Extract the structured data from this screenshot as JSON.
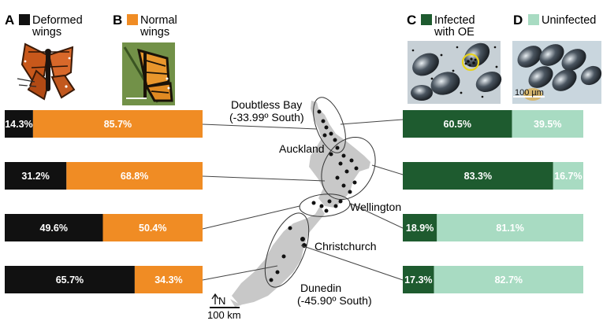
{
  "panels": {
    "A": {
      "letter": "A",
      "label_line1": "Deformed",
      "label_line2": "wings",
      "color": "#111111"
    },
    "B": {
      "letter": "B",
      "label_line1": "Normal",
      "label_line2": "wings",
      "color": "#f08c24"
    },
    "C": {
      "letter": "C",
      "label_line1": "Infected",
      "label_line2": "with OE",
      "color": "#1e5b2f"
    },
    "D": {
      "letter": "D",
      "label_line1": "Uninfected",
      "label_line2": "",
      "color": "#a8dbc2"
    }
  },
  "map": {
    "sites": [
      {
        "name_line1": "Doubtless Bay",
        "name_line2": "(-33.99º South)"
      },
      {
        "name_line1": "Auckland",
        "name_line2": ""
      },
      {
        "name_line1": "Wellington",
        "name_line2": ""
      },
      {
        "name_line1": "Christchurch",
        "name_line2": ""
      },
      {
        "name_line1": "Dunedin",
        "name_line2": "(-45.90º South)"
      }
    ],
    "north_label": "N",
    "scale_label": "100 km",
    "land_color": "#c8c8c8"
  },
  "micro_scale_label": "100 µm",
  "chart_data": [
    {
      "type": "bar",
      "orientation": "horizontal",
      "stacked": true,
      "categories": [
        "Doubtless Bay",
        "Auckland",
        "Wellington",
        "Christchurch/Dunedin"
      ],
      "series": [
        {
          "name": "Deformed wings",
          "color": "#111111",
          "values": [
            14.3,
            31.2,
            49.6,
            65.7
          ]
        },
        {
          "name": "Normal wings",
          "color": "#f08c24",
          "values": [
            85.7,
            68.8,
            50.4,
            34.3
          ]
        }
      ],
      "labels": [
        [
          "14.3%",
          "85.7%"
        ],
        [
          "31.2%",
          "68.8%"
        ],
        [
          "49.6%",
          "50.4%"
        ],
        [
          "65.7%",
          "34.3%"
        ]
      ],
      "xlim": [
        0,
        100
      ]
    },
    {
      "type": "bar",
      "orientation": "horizontal",
      "stacked": true,
      "categories": [
        "Doubtless Bay",
        "Auckland",
        "Wellington",
        "Christchurch/Dunedin"
      ],
      "series": [
        {
          "name": "Infected with OE",
          "color": "#1e5b2f",
          "values": [
            60.5,
            83.3,
            18.9,
            17.3
          ]
        },
        {
          "name": "Uninfected",
          "color": "#a8dbc2",
          "values": [
            39.5,
            16.7,
            81.1,
            82.7
          ]
        }
      ],
      "labels": [
        [
          "60.5%",
          "39.5%"
        ],
        [
          "83.3%",
          "16.7%"
        ],
        [
          "18.9%",
          "81.1%"
        ],
        [
          "17.3%",
          "82.7%"
        ]
      ],
      "xlim": [
        0,
        100
      ]
    }
  ]
}
